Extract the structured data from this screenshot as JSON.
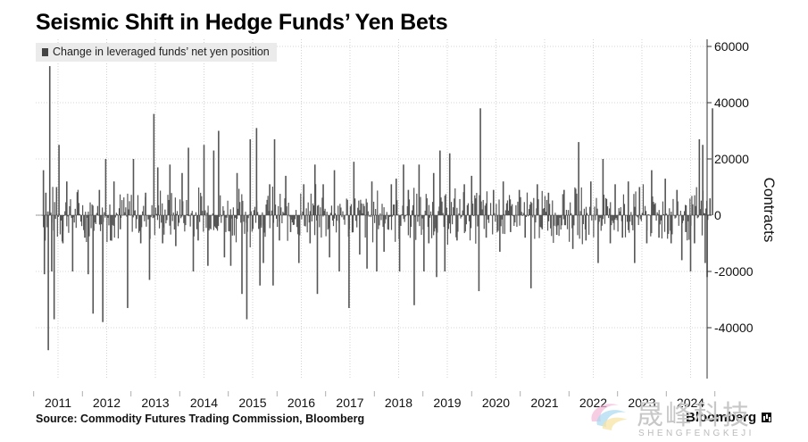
{
  "header": {
    "title": "Seismic Shift in Hedge Funds’ Yen Bets"
  },
  "legend": {
    "label": "Change in leveraged funds’ net yen position"
  },
  "footer": {
    "source": "Source: Commodity Futures Trading Commission, Bloomberg",
    "brand": "Bloomberg"
  },
  "watermark": {
    "chinese": "晟峰科技",
    "latin": "SHENGFENGKEJI"
  },
  "chart_data": {
    "type": "bar",
    "ylabel": "Contracts",
    "ylim": [
      -57000,
      62000
    ],
    "yticks": [
      60000,
      40000,
      20000,
      0,
      -20000,
      -40000
    ],
    "ytick_labels": [
      "60000",
      "40000",
      "20000",
      "0",
      "-20000",
      "-40000"
    ],
    "xlim": [
      2010.65,
      2024.75
    ],
    "xticks": [
      2011,
      2012,
      2013,
      2014,
      2015,
      2016,
      2017,
      2018,
      2019,
      2020,
      2021,
      2022,
      2023,
      2024
    ],
    "xtick_labels": [
      "2011",
      "2012",
      "2013",
      "2014",
      "2015",
      "2016",
      "2017",
      "2018",
      "2019",
      "2020",
      "2021",
      "2022",
      "2023",
      "2024"
    ],
    "grid": true,
    "legend_position": "top-left",
    "bar_color": "#555555",
    "series": [
      {
        "name": "Change in leveraged funds’ net yen position",
        "points": [
          {
            "x": 2010.7,
            "y": 16000
          },
          {
            "x": 2010.72,
            "y": -21000
          },
          {
            "x": 2010.75,
            "y": 8000
          },
          {
            "x": 2010.8,
            "y": -48000
          },
          {
            "x": 2010.83,
            "y": 53000
          },
          {
            "x": 2010.87,
            "y": -20000
          },
          {
            "x": 2010.92,
            "y": -37000
          },
          {
            "x": 2010.97,
            "y": 10000
          },
          {
            "x": 2011.02,
            "y": 25000
          },
          {
            "x": 2011.1,
            "y": -10000
          },
          {
            "x": 2011.18,
            "y": 12000
          },
          {
            "x": 2011.3,
            "y": -20000
          },
          {
            "x": 2011.4,
            "y": 8000
          },
          {
            "x": 2011.55,
            "y": -8000
          },
          {
            "x": 2011.62,
            "y": -21000
          },
          {
            "x": 2011.72,
            "y": -35000
          },
          {
            "x": 2011.85,
            "y": 9000
          },
          {
            "x": 2011.92,
            "y": -38000
          },
          {
            "x": 2011.98,
            "y": 20000
          },
          {
            "x": 2012.08,
            "y": -9000
          },
          {
            "x": 2012.15,
            "y": 12000
          },
          {
            "x": 2012.28,
            "y": -5000
          },
          {
            "x": 2012.43,
            "y": -33000
          },
          {
            "x": 2012.55,
            "y": 20000
          },
          {
            "x": 2012.7,
            "y": -10000
          },
          {
            "x": 2012.8,
            "y": 8000
          },
          {
            "x": 2012.88,
            "y": -23000
          },
          {
            "x": 2012.97,
            "y": 36000
          },
          {
            "x": 2013.05,
            "y": 17000
          },
          {
            "x": 2013.15,
            "y": -10000
          },
          {
            "x": 2013.3,
            "y": 18000
          },
          {
            "x": 2013.42,
            "y": -11000
          },
          {
            "x": 2013.55,
            "y": 15000
          },
          {
            "x": 2013.68,
            "y": 24000
          },
          {
            "x": 2013.78,
            "y": -20000
          },
          {
            "x": 2013.88,
            "y": -9000
          },
          {
            "x": 2014.0,
            "y": 25000
          },
          {
            "x": 2014.08,
            "y": -18000
          },
          {
            "x": 2014.2,
            "y": 23000
          },
          {
            "x": 2014.3,
            "y": 30000
          },
          {
            "x": 2014.42,
            "y": -15000
          },
          {
            "x": 2014.55,
            "y": -18000
          },
          {
            "x": 2014.68,
            "y": 15000
          },
          {
            "x": 2014.78,
            "y": -28000
          },
          {
            "x": 2014.88,
            "y": -37000
          },
          {
            "x": 2014.95,
            "y": 27000
          },
          {
            "x": 2015.08,
            "y": 31000
          },
          {
            "x": 2015.15,
            "y": -25000
          },
          {
            "x": 2015.22,
            "y": -17000
          },
          {
            "x": 2015.35,
            "y": 11000
          },
          {
            "x": 2015.42,
            "y": -25000
          },
          {
            "x": 2015.45,
            "y": 27000
          },
          {
            "x": 2015.55,
            "y": -9000
          },
          {
            "x": 2015.68,
            "y": 14000
          },
          {
            "x": 2015.78,
            "y": -6000
          },
          {
            "x": 2015.95,
            "y": -17000
          },
          {
            "x": 2016.05,
            "y": 11000
          },
          {
            "x": 2016.18,
            "y": -10000
          },
          {
            "x": 2016.28,
            "y": 18000
          },
          {
            "x": 2016.33,
            "y": -28000
          },
          {
            "x": 2016.45,
            "y": 11000
          },
          {
            "x": 2016.58,
            "y": -15000
          },
          {
            "x": 2016.68,
            "y": 16000
          },
          {
            "x": 2016.78,
            "y": -20000
          },
          {
            "x": 2016.98,
            "y": -33000
          },
          {
            "x": 2017.08,
            "y": 19000
          },
          {
            "x": 2017.2,
            "y": -14000
          },
          {
            "x": 2017.35,
            "y": -19000
          },
          {
            "x": 2017.45,
            "y": 12000
          },
          {
            "x": 2017.55,
            "y": -20000
          },
          {
            "x": 2017.7,
            "y": -13000
          },
          {
            "x": 2017.85,
            "y": 11000
          },
          {
            "x": 2017.95,
            "y": 13000
          },
          {
            "x": 2018.02,
            "y": -20000
          },
          {
            "x": 2018.1,
            "y": 18000
          },
          {
            "x": 2018.2,
            "y": 9000
          },
          {
            "x": 2018.32,
            "y": -32000
          },
          {
            "x": 2018.42,
            "y": 18000
          },
          {
            "x": 2018.52,
            "y": -20000
          },
          {
            "x": 2018.62,
            "y": -10000
          },
          {
            "x": 2018.72,
            "y": 15000
          },
          {
            "x": 2018.78,
            "y": -22000
          },
          {
            "x": 2018.85,
            "y": 23000
          },
          {
            "x": 2018.95,
            "y": -20000
          },
          {
            "x": 2019.05,
            "y": 22000
          },
          {
            "x": 2019.2,
            "y": -9000
          },
          {
            "x": 2019.35,
            "y": 11000
          },
          {
            "x": 2019.5,
            "y": 14000
          },
          {
            "x": 2019.58,
            "y": 6000
          },
          {
            "x": 2019.65,
            "y": -27000
          },
          {
            "x": 2019.68,
            "y": 38000
          },
          {
            "x": 2019.8,
            "y": -8000
          },
          {
            "x": 2019.95,
            "y": 9000
          },
          {
            "x": 2020.08,
            "y": -13000
          },
          {
            "x": 2020.15,
            "y": 12000
          },
          {
            "x": 2020.3,
            "y": -6000
          },
          {
            "x": 2020.48,
            "y": 9000
          },
          {
            "x": 2020.6,
            "y": -8000
          },
          {
            "x": 2020.72,
            "y": -26000
          },
          {
            "x": 2020.85,
            "y": 11000
          },
          {
            "x": 2020.95,
            "y": -5000
          },
          {
            "x": 2021.08,
            "y": 8000
          },
          {
            "x": 2021.25,
            "y": -7000
          },
          {
            "x": 2021.4,
            "y": 9000
          },
          {
            "x": 2021.58,
            "y": -12000
          },
          {
            "x": 2021.7,
            "y": 26000
          },
          {
            "x": 2021.85,
            "y": -9000
          },
          {
            "x": 2021.95,
            "y": 12000
          },
          {
            "x": 2022.1,
            "y": -17000
          },
          {
            "x": 2022.2,
            "y": 20000
          },
          {
            "x": 2022.35,
            "y": -10000
          },
          {
            "x": 2022.45,
            "y": 11000
          },
          {
            "x": 2022.6,
            "y": -8000
          },
          {
            "x": 2022.72,
            "y": 12000
          },
          {
            "x": 2022.85,
            "y": -17000
          },
          {
            "x": 2022.95,
            "y": 10000
          },
          {
            "x": 2023.1,
            "y": -10000
          },
          {
            "x": 2023.2,
            "y": 16000
          },
          {
            "x": 2023.35,
            "y": -8000
          },
          {
            "x": 2023.48,
            "y": 13000
          },
          {
            "x": 2023.6,
            "y": -10000
          },
          {
            "x": 2023.72,
            "y": 9000
          },
          {
            "x": 2023.82,
            "y": -16000
          },
          {
            "x": 2023.9,
            "y": -6000
          },
          {
            "x": 2024.0,
            "y": -20000
          },
          {
            "x": 2024.08,
            "y": -10000
          },
          {
            "x": 2024.18,
            "y": 27000
          },
          {
            "x": 2024.25,
            "y": 25000
          },
          {
            "x": 2024.3,
            "y": -17000
          },
          {
            "x": 2024.34,
            "y": -22000
          },
          {
            "x": 2024.4,
            "y": 6000
          },
          {
            "x": 2024.45,
            "y": 38000
          }
        ],
        "dense_background": {
          "start": 2010.68,
          "end": 2024.38,
          "weeks_per_year": 52,
          "amplitude": 9000,
          "seed": 7
        }
      }
    ]
  }
}
